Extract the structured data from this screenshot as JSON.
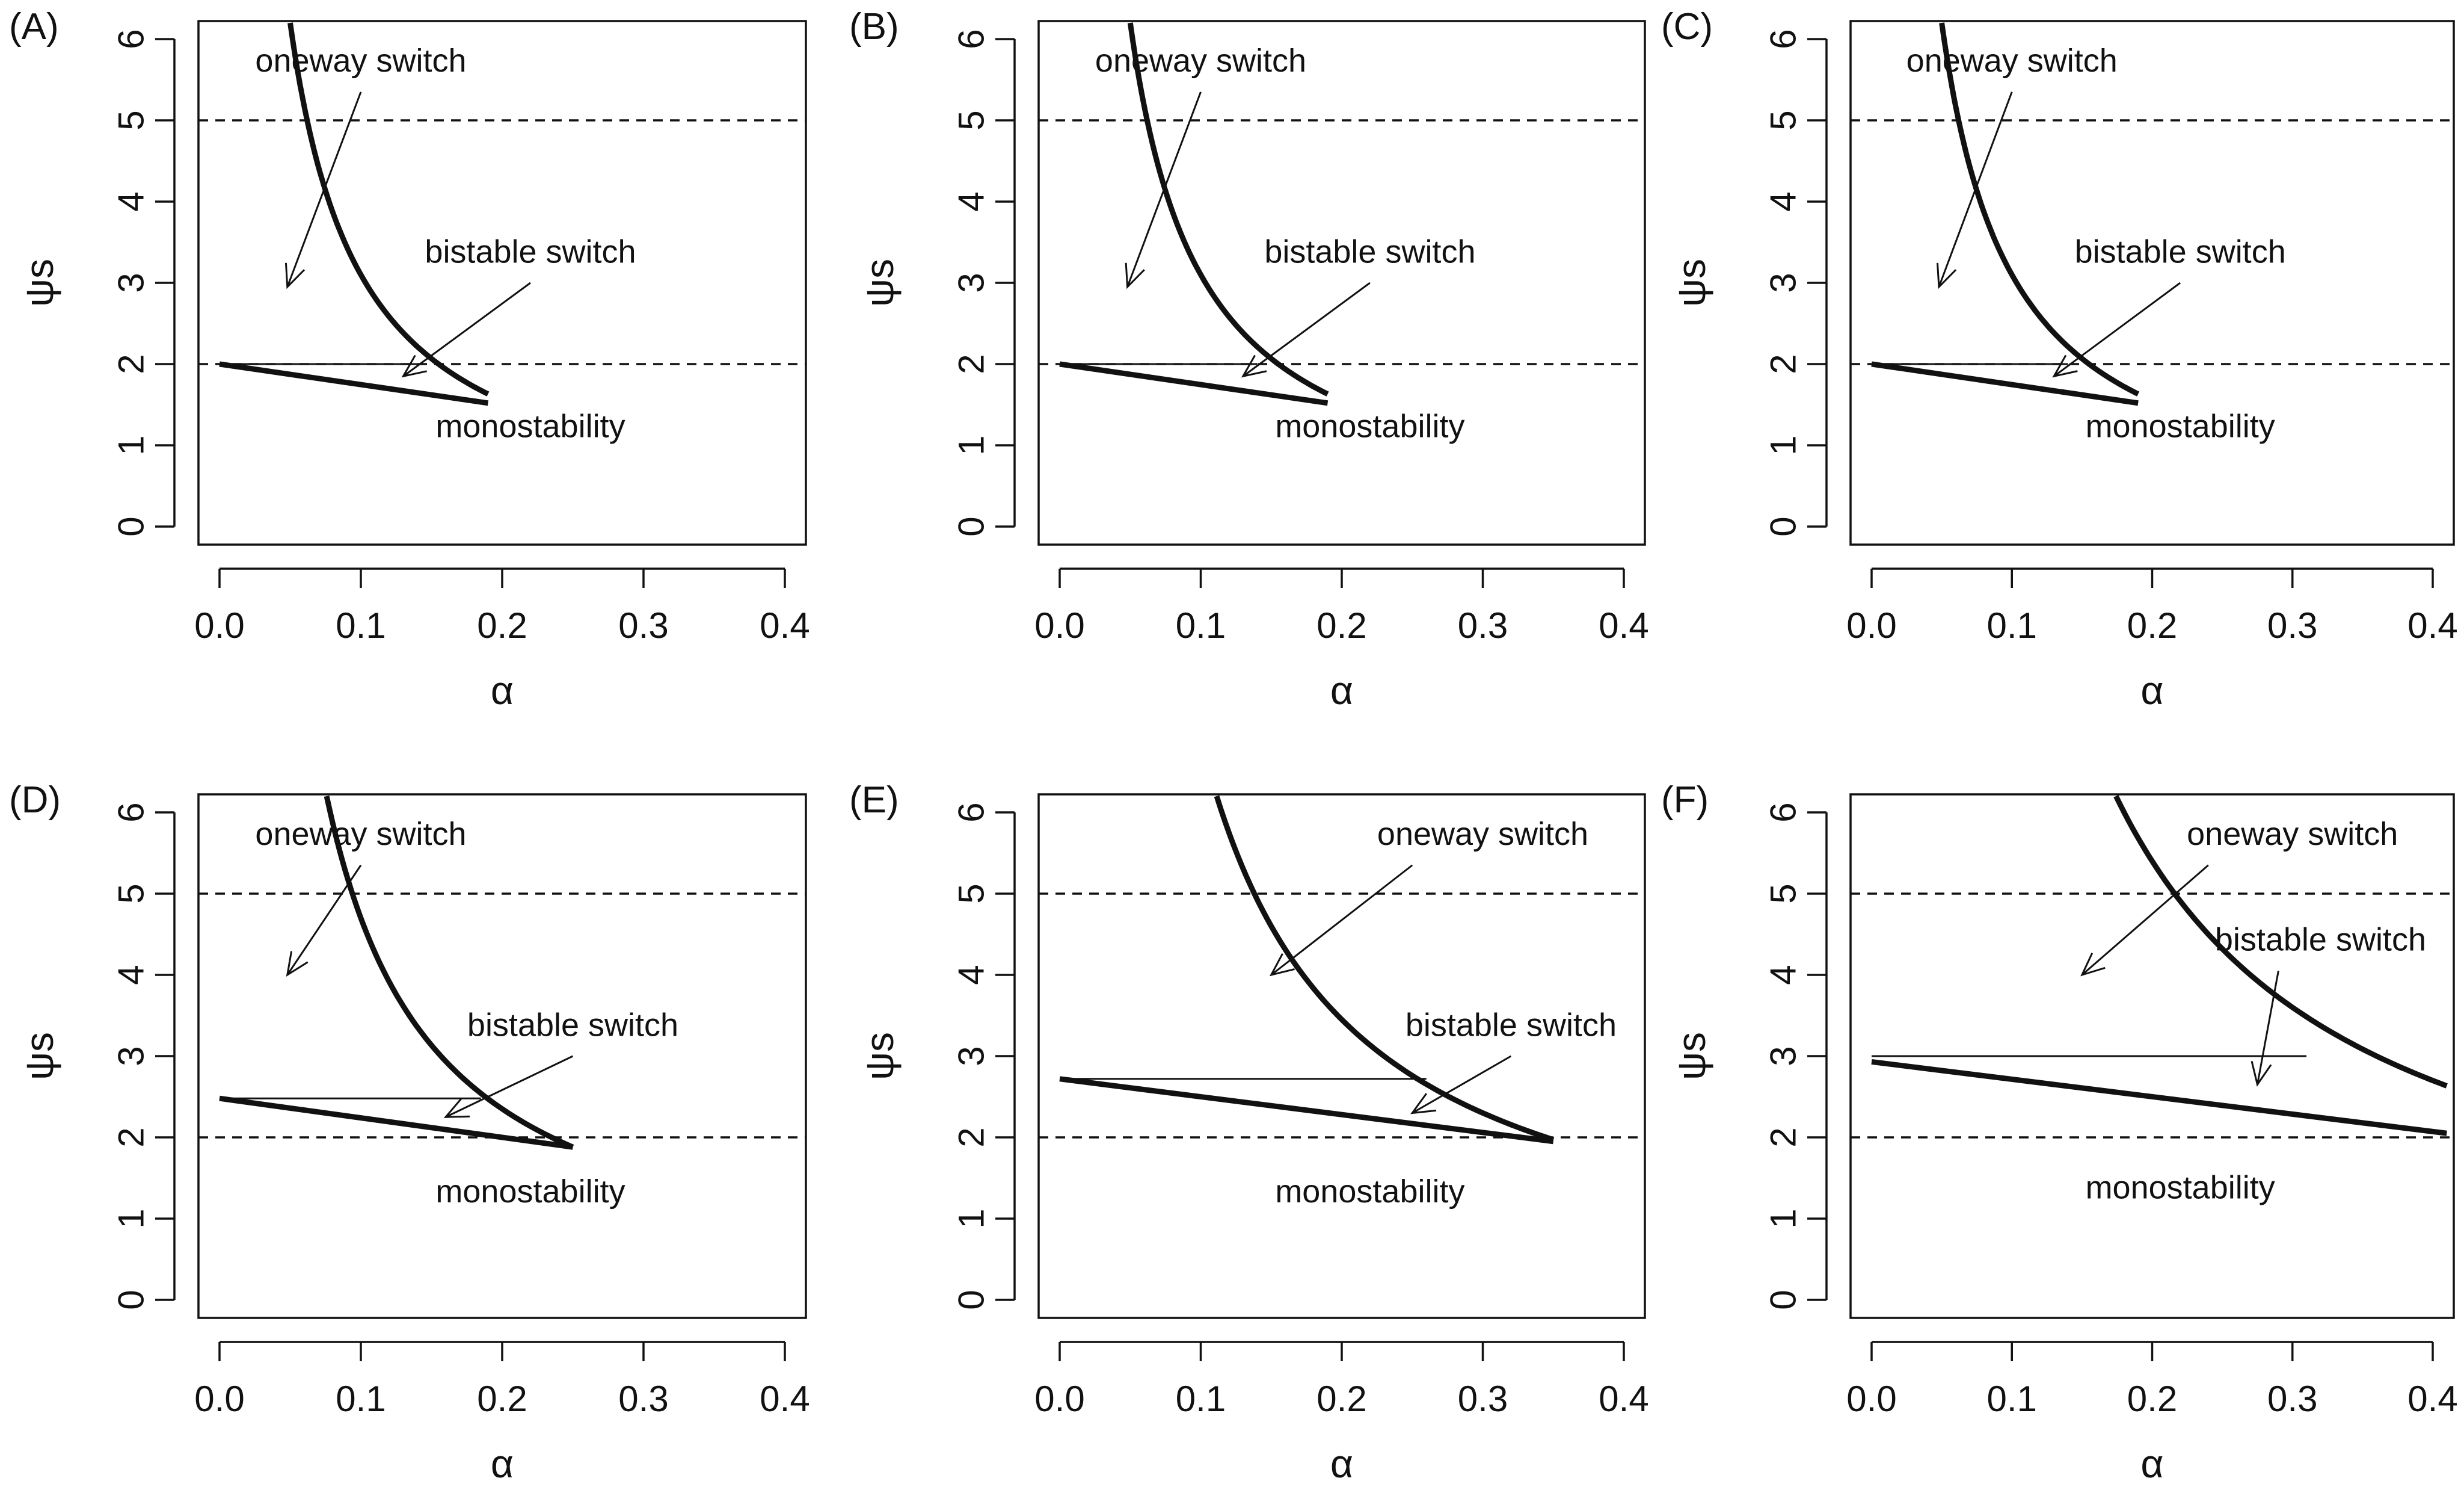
{
  "chart_data": [
    {
      "panel": "(A)",
      "type": "line",
      "xlabel": "α",
      "ylabel": "ψs",
      "xlim": [
        0,
        0.4
      ],
      "ylim": [
        0,
        6
      ],
      "xticks": [
        "0.0",
        "0.1",
        "0.2",
        "0.3",
        "0.4"
      ],
      "yticks": [
        "0",
        "1",
        "2",
        "3",
        "4",
        "5",
        "6"
      ],
      "dashed_y": [
        2,
        5
      ],
      "upper_curve": {
        "k": 0.31,
        "x_end": 0.19
      },
      "lower_line": [
        [
          0,
          2.0
        ],
        [
          0.19,
          1.52
        ]
      ],
      "hline": {
        "y": 2.0,
        "x0": 0,
        "x1": 0.14
      },
      "labels": {
        "oneway": {
          "text": "oneway switch",
          "x": 0.1,
          "y": 5.6,
          "arrow_from": [
            0.1,
            5.35
          ],
          "arrow_to": [
            0.048,
            2.95
          ]
        },
        "bistable": {
          "text": "bistable switch",
          "x": 0.22,
          "y": 3.25,
          "arrow_from": [
            0.22,
            3.0
          ],
          "arrow_to": [
            0.13,
            1.85
          ]
        },
        "mono": {
          "text": "monostability",
          "x": 0.22,
          "y": 1.1
        }
      }
    },
    {
      "panel": "(B)",
      "type": "line",
      "xlabel": "α",
      "ylabel": "ψs",
      "xlim": [
        0,
        0.4
      ],
      "ylim": [
        0,
        6
      ],
      "xticks": [
        "0.0",
        "0.1",
        "0.2",
        "0.3",
        "0.4"
      ],
      "yticks": [
        "0",
        "1",
        "2",
        "3",
        "4",
        "5",
        "6"
      ],
      "dashed_y": [
        2,
        5
      ],
      "upper_curve": {
        "k": 0.31,
        "x_end": 0.19
      },
      "lower_line": [
        [
          0,
          2.0
        ],
        [
          0.19,
          1.52
        ]
      ],
      "hline": {
        "y": 2.0,
        "x0": 0,
        "x1": 0.14
      },
      "labels": {
        "oneway": {
          "text": "oneway switch",
          "x": 0.1,
          "y": 5.6,
          "arrow_from": [
            0.1,
            5.35
          ],
          "arrow_to": [
            0.048,
            2.95
          ]
        },
        "bistable": {
          "text": "bistable switch",
          "x": 0.22,
          "y": 3.25,
          "arrow_from": [
            0.22,
            3.0
          ],
          "arrow_to": [
            0.13,
            1.85
          ]
        },
        "mono": {
          "text": "monostability",
          "x": 0.22,
          "y": 1.1
        }
      }
    },
    {
      "panel": "(C)",
      "type": "line",
      "xlabel": "α",
      "ylabel": "ψs",
      "xlim": [
        0,
        0.4
      ],
      "ylim": [
        0,
        6
      ],
      "xticks": [
        "0.0",
        "0.1",
        "0.2",
        "0.3",
        "0.4"
      ],
      "yticks": [
        "0",
        "1",
        "2",
        "3",
        "4",
        "5",
        "6"
      ],
      "dashed_y": [
        2,
        5
      ],
      "upper_curve": {
        "k": 0.31,
        "x_end": 0.19
      },
      "lower_line": [
        [
          0,
          2.0
        ],
        [
          0.19,
          1.52
        ]
      ],
      "hline": {
        "y": 2.0,
        "x0": 0,
        "x1": 0.14
      },
      "labels": {
        "oneway": {
          "text": "oneway switch",
          "x": 0.1,
          "y": 5.6,
          "arrow_from": [
            0.1,
            5.35
          ],
          "arrow_to": [
            0.048,
            2.95
          ]
        },
        "bistable": {
          "text": "bistable switch",
          "x": 0.22,
          "y": 3.25,
          "arrow_from": [
            0.22,
            3.0
          ],
          "arrow_to": [
            0.13,
            1.85
          ]
        },
        "mono": {
          "text": "monostability",
          "x": 0.22,
          "y": 1.1
        }
      }
    },
    {
      "panel": "(D)",
      "type": "line",
      "xlabel": "α",
      "ylabel": "ψs",
      "xlim": [
        0,
        0.4
      ],
      "ylim": [
        0,
        6
      ],
      "xticks": [
        "0.0",
        "0.1",
        "0.2",
        "0.3",
        "0.4"
      ],
      "yticks": [
        "0",
        "1",
        "2",
        "3",
        "4",
        "5",
        "6"
      ],
      "dashed_y": [
        2,
        5
      ],
      "upper_curve": {
        "k": 0.47,
        "x_end": 0.25
      },
      "lower_line": [
        [
          0,
          2.48
        ],
        [
          0.25,
          1.88
        ]
      ],
      "hline": {
        "y": 2.48,
        "x0": 0,
        "x1": 0.185
      },
      "labels": {
        "oneway": {
          "text": "oneway switch",
          "x": 0.1,
          "y": 5.6,
          "arrow_from": [
            0.1,
            5.35
          ],
          "arrow_to": [
            0.048,
            4.0
          ]
        },
        "bistable": {
          "text": "bistable switch",
          "x": 0.25,
          "y": 3.25,
          "arrow_from": [
            0.25,
            3.0
          ],
          "arrow_to": [
            0.16,
            2.25
          ]
        },
        "mono": {
          "text": "monostability",
          "x": 0.22,
          "y": 1.2
        }
      }
    },
    {
      "panel": "(E)",
      "type": "line",
      "xlabel": "α",
      "ylabel": "ψs",
      "xlim": [
        0,
        0.4
      ],
      "ylim": [
        0,
        6
      ],
      "xticks": [
        "0.0",
        "0.1",
        "0.2",
        "0.3",
        "0.4"
      ],
      "yticks": [
        "0",
        "1",
        "2",
        "3",
        "4",
        "5",
        "6"
      ],
      "dashed_y": [
        2,
        5
      ],
      "upper_curve": {
        "k": 0.69,
        "x_end": 0.35
      },
      "lower_line": [
        [
          0,
          2.72
        ],
        [
          0.35,
          1.95
        ]
      ],
      "hline": {
        "y": 2.72,
        "x0": 0,
        "x1": 0.26
      },
      "labels": {
        "oneway": {
          "text": "oneway switch",
          "x": 0.3,
          "y": 5.6,
          "arrow_from": [
            0.25,
            5.35
          ],
          "arrow_to": [
            0.15,
            4.0
          ]
        },
        "bistable": {
          "text": "bistable switch",
          "x": 0.32,
          "y": 3.25,
          "arrow_from": [
            0.32,
            3.0
          ],
          "arrow_to": [
            0.25,
            2.3
          ]
        },
        "mono": {
          "text": "monostability",
          "x": 0.22,
          "y": 1.2
        }
      }
    },
    {
      "panel": "(F)",
      "type": "line",
      "xlabel": "α",
      "ylabel": "ψs",
      "xlim": [
        0,
        0.4
      ],
      "ylim": [
        0,
        6
      ],
      "xticks": [
        "0.0",
        "0.1",
        "0.2",
        "0.3",
        "0.4"
      ],
      "yticks": [
        "0",
        "1",
        "2",
        "3",
        "4",
        "5",
        "6"
      ],
      "dashed_y": [
        2,
        5
      ],
      "upper_curve": {
        "k": 1.08,
        "x_end": 0.41
      },
      "lower_line": [
        [
          0,
          2.93
        ],
        [
          0.41,
          2.05
        ]
      ],
      "hline": {
        "y": 3.0,
        "x0": 0,
        "x1": 0.31
      },
      "labels": {
        "oneway": {
          "text": "oneway switch",
          "x": 0.3,
          "y": 5.6,
          "arrow_from": [
            0.24,
            5.35
          ],
          "arrow_to": [
            0.15,
            4.0
          ]
        },
        "bistable": {
          "text": "bistable switch",
          "x": 0.32,
          "y": 4.3,
          "arrow_from": [
            0.29,
            4.05
          ],
          "arrow_to": [
            0.275,
            2.65
          ]
        },
        "mono": {
          "text": "monostability",
          "x": 0.22,
          "y": 1.25
        }
      }
    }
  ]
}
